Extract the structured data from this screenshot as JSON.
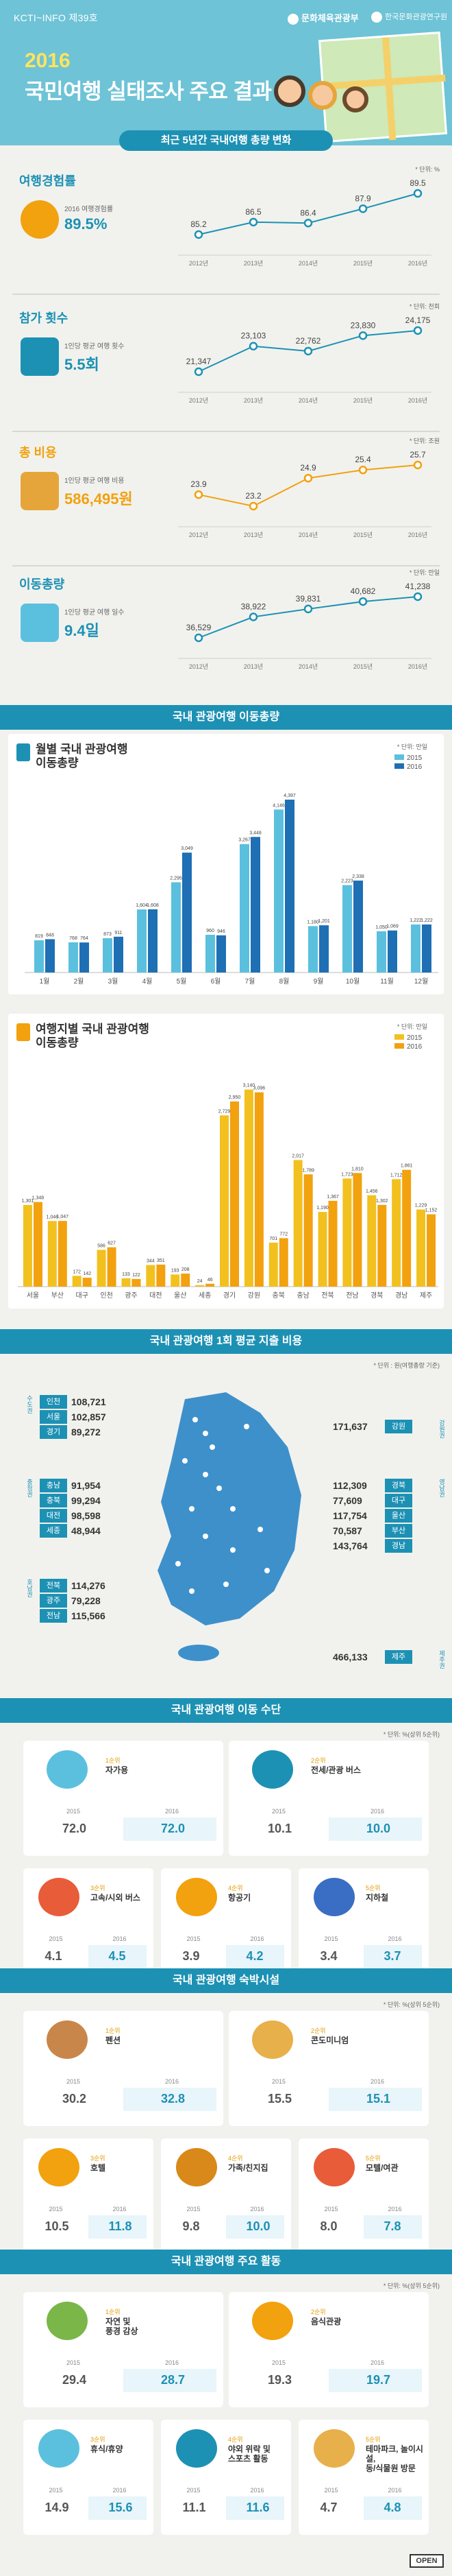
{
  "header": {
    "series": "KCTI~INFO 제39호",
    "logo_left": "문화체육관광부",
    "logo_right": "한국문화관광연구원",
    "year": "2016",
    "title": "국민여행 실태조사 주요 결과",
    "banner": "최근 5년간 국내여행 총량 변화"
  },
  "colors": {
    "blue": "#1d91b4",
    "orange": "#f2a10f",
    "dark_orange": "#d8891a",
    "light_blue": "#5bc0de",
    "navy": "#1e6fb4",
    "accent_year": "#ffe45c"
  },
  "trends": [
    {
      "label": "여행경험률",
      "unit": "* 단위: %",
      "desc": "2016 여행경험률",
      "big": "89.5%",
      "color": "#1d91b4",
      "years": [
        "2012년",
        "2013년",
        "2014년",
        "2015년",
        "2016년"
      ],
      "values": [
        85.2,
        86.5,
        86.4,
        87.9,
        89.5
      ],
      "value_labels": [
        "85.2",
        "86.5",
        "86.4",
        "87.9",
        "89.5"
      ]
    },
    {
      "label": "참가 횟수",
      "unit": "* 단위: 천회",
      "desc": "1인당 평균 여행 횟수",
      "big": "5.5회",
      "color": "#1d91b4",
      "years": [
        "2012년",
        "2013년",
        "2014년",
        "2015년",
        "2016년"
      ],
      "values": [
        21347,
        23103,
        22762,
        23830,
        24175
      ],
      "value_labels": [
        "21,347",
        "23,103",
        "22,762",
        "23,830",
        "24,175"
      ]
    },
    {
      "label": "총 비용",
      "unit": "* 단위: 조원",
      "desc": "1인당 평균 여행 비용",
      "big": "586,495원",
      "color": "#f2a10f",
      "years": [
        "2012년",
        "2013년",
        "2014년",
        "2015년",
        "2016년"
      ],
      "values": [
        23.9,
        23.2,
        24.9,
        25.4,
        25.7
      ],
      "value_labels": [
        "23.9",
        "23.2",
        "24.9",
        "25.4",
        "25.7"
      ]
    },
    {
      "label": "이동총량",
      "unit": "* 단위: 만일",
      "desc": "1인당 평균 여행 일수",
      "big": "9.4일",
      "color": "#1d91b4",
      "years": [
        "2012년",
        "2013년",
        "2014년",
        "2015년",
        "2016년"
      ],
      "values": [
        36529,
        38922,
        39831,
        40682,
        41238
      ],
      "value_labels": [
        "36,529",
        "38,922",
        "39,831",
        "40,682",
        "41,238"
      ]
    }
  ],
  "section2": {
    "title": "국내 관광여행 이동총량"
  },
  "chart_data": [
    {
      "type": "bar",
      "title": "월별 국내 관광여행\n이동총량",
      "unit": "* 단위: 만일",
      "categories": [
        "1월",
        "2월",
        "3월",
        "4월",
        "5월",
        "6월",
        "7월",
        "8월",
        "9월",
        "10월",
        "11월",
        "12월"
      ],
      "series": [
        {
          "name": "2015",
          "color": "#5bc0de",
          "values": [
            819,
            768,
            873,
            1604,
            2295,
            960,
            3267,
            4146,
            1180,
            2223,
            1050,
            1222
          ],
          "labels": [
            "819",
            "768",
            "873",
            "1,604",
            "2,295",
            "960",
            "3,267",
            "4,146",
            "1,180",
            "2,223",
            "1,050",
            "1,222"
          ]
        },
        {
          "name": "2016",
          "color": "#1e6fb4",
          "values": [
            848,
            764,
            911,
            1608,
            3049,
            946,
            3448,
            4397,
            1201,
            2338,
            1069,
            1222
          ],
          "labels": [
            "848",
            "764",
            "911",
            "1,608",
            "3,049",
            "946",
            "3,448",
            "4,397",
            "1,201",
            "2,338",
            "1,069",
            "1,222"
          ]
        }
      ]
    },
    {
      "type": "bar",
      "title": "여행지별 국내 관광여행\n이동총량",
      "unit": "* 단위: 만일",
      "categories": [
        "서울",
        "부산",
        "대구",
        "인천",
        "광주",
        "대전",
        "울산",
        "세종",
        "경기",
        "강원",
        "충북",
        "충남",
        "전북",
        "전남",
        "경북",
        "경남",
        "제주"
      ],
      "series": [
        {
          "name": "2015",
          "color": "#f2c11f",
          "values": [
            1301,
            1046,
            172,
            586,
            133,
            344,
            193,
            24,
            2729,
            3140,
            701,
            2017,
            1190,
            1723,
            1456,
            1712,
            1229
          ],
          "labels": [
            "1,301",
            "1,046",
            "172",
            "586",
            "133",
            "344",
            "193",
            "24",
            "2,729",
            "3,140",
            "701",
            "2,017",
            "1,190",
            "1,723",
            "1,456",
            "1,712",
            "1,229"
          ]
        },
        {
          "name": "2016",
          "color": "#f2a10f",
          "values": [
            1348,
            1047,
            142,
            627,
            122,
            351,
            208,
            46,
            2950,
            3096,
            772,
            1789,
            1367,
            1810,
            1302,
            1861,
            1152
          ],
          "labels": [
            "1,348",
            "1,047",
            "142",
            "627",
            "122",
            "351",
            "208",
            "46",
            "2,950",
            "3,096",
            "772",
            "1,789",
            "1,367",
            "1,810",
            "1,302",
            "1,861",
            "1,152"
          ]
        }
      ]
    }
  ],
  "section3": {
    "title": "국내 관광여행 1회 평균 지출 비용",
    "unit": "* 단위 : 원(여행총량 기준)",
    "groups": [
      {
        "group": "수도권",
        "items": [
          {
            "name": "인천",
            "value": "108,721"
          },
          {
            "name": "서울",
            "value": "102,857"
          },
          {
            "name": "경기",
            "value": "89,272"
          }
        ]
      },
      {
        "group": "충청권",
        "items": [
          {
            "name": "충남",
            "value": "91,954"
          },
          {
            "name": "충북",
            "value": "99,294"
          },
          {
            "name": "대전",
            "value": "98,598"
          },
          {
            "name": "세종",
            "value": "48,944"
          }
        ]
      },
      {
        "group": "호남권",
        "items": [
          {
            "name": "전북",
            "value": "114,276"
          },
          {
            "name": "광주",
            "value": "79,228"
          },
          {
            "name": "전남",
            "value": "115,566"
          }
        ]
      }
    ],
    "right": [
      {
        "group": "강원권",
        "items": [
          {
            "name": "강원",
            "value": "171,637"
          }
        ]
      },
      {
        "group": "영남권",
        "items": [
          {
            "name": "경북",
            "value": "112,309"
          },
          {
            "name": "대구",
            "value": "77,609"
          },
          {
            "name": "울산",
            "value": "117,754"
          },
          {
            "name": "부산",
            "value": "70,587"
          },
          {
            "name": "경남",
            "value": "143,764"
          }
        ]
      },
      {
        "group": "제주권",
        "items": [
          {
            "name": "제주",
            "value": "466,133"
          }
        ]
      }
    ]
  },
  "section4": {
    "title": "국내 관광여행 이동 수단",
    "unit": "* 단위: %(상위 5순위)",
    "items": [
      {
        "rank": "1순위",
        "name": "자가용",
        "v2015": "72.0",
        "v2016": "72.0"
      },
      {
        "rank": "2순위",
        "name": "전세/관광 버스",
        "v2015": "10.1",
        "v2016": "10.0"
      },
      {
        "rank": "3순위",
        "name": "고속/시외 버스",
        "v2015": "4.1",
        "v2016": "4.5"
      },
      {
        "rank": "4순위",
        "name": "항공기",
        "v2015": "3.9",
        "v2016": "4.2"
      },
      {
        "rank": "5순위",
        "name": "지하철",
        "v2015": "3.4",
        "v2016": "3.7"
      }
    ]
  },
  "section5": {
    "title": "국내 관광여행 숙박시설",
    "unit": "* 단위: %(상위 5순위)",
    "items": [
      {
        "rank": "1순위",
        "name": "펜션",
        "v2015": "30.2",
        "v2016": "32.8"
      },
      {
        "rank": "2순위",
        "name": "콘도미니엄",
        "v2015": "15.5",
        "v2016": "15.1"
      },
      {
        "rank": "3순위",
        "name": "호텔",
        "v2015": "10.5",
        "v2016": "11.8"
      },
      {
        "rank": "4순위",
        "name": "가족/친지집",
        "v2015": "9.8",
        "v2016": "10.0"
      },
      {
        "rank": "5순위",
        "name": "모텔/여관",
        "v2015": "8.0",
        "v2016": "7.8"
      }
    ]
  },
  "section6": {
    "title": "국내 관광여행 주요 활동",
    "unit": "* 단위: %(상위 5순위)",
    "items": [
      {
        "rank": "1순위",
        "name": "자연 및\n풍경 감상",
        "v2015": "29.4",
        "v2016": "28.7"
      },
      {
        "rank": "2순위",
        "name": "음식관광",
        "v2015": "19.3",
        "v2016": "19.7"
      },
      {
        "rank": "3순위",
        "name": "휴식/휴양",
        "v2015": "14.9",
        "v2016": "15.6"
      },
      {
        "rank": "4순위",
        "name": "야외 위락 및\n스포츠 활동",
        "v2015": "11.1",
        "v2016": "11.6"
      },
      {
        "rank": "5순위",
        "name": "테마파크, 놀이시설,\n동/식물원 방문",
        "v2015": "4.7",
        "v2016": "4.8"
      }
    ]
  },
  "year_labels": {
    "y2015": "2015",
    "y2016": "2016"
  },
  "footer": {
    "badge": "OPEN"
  }
}
